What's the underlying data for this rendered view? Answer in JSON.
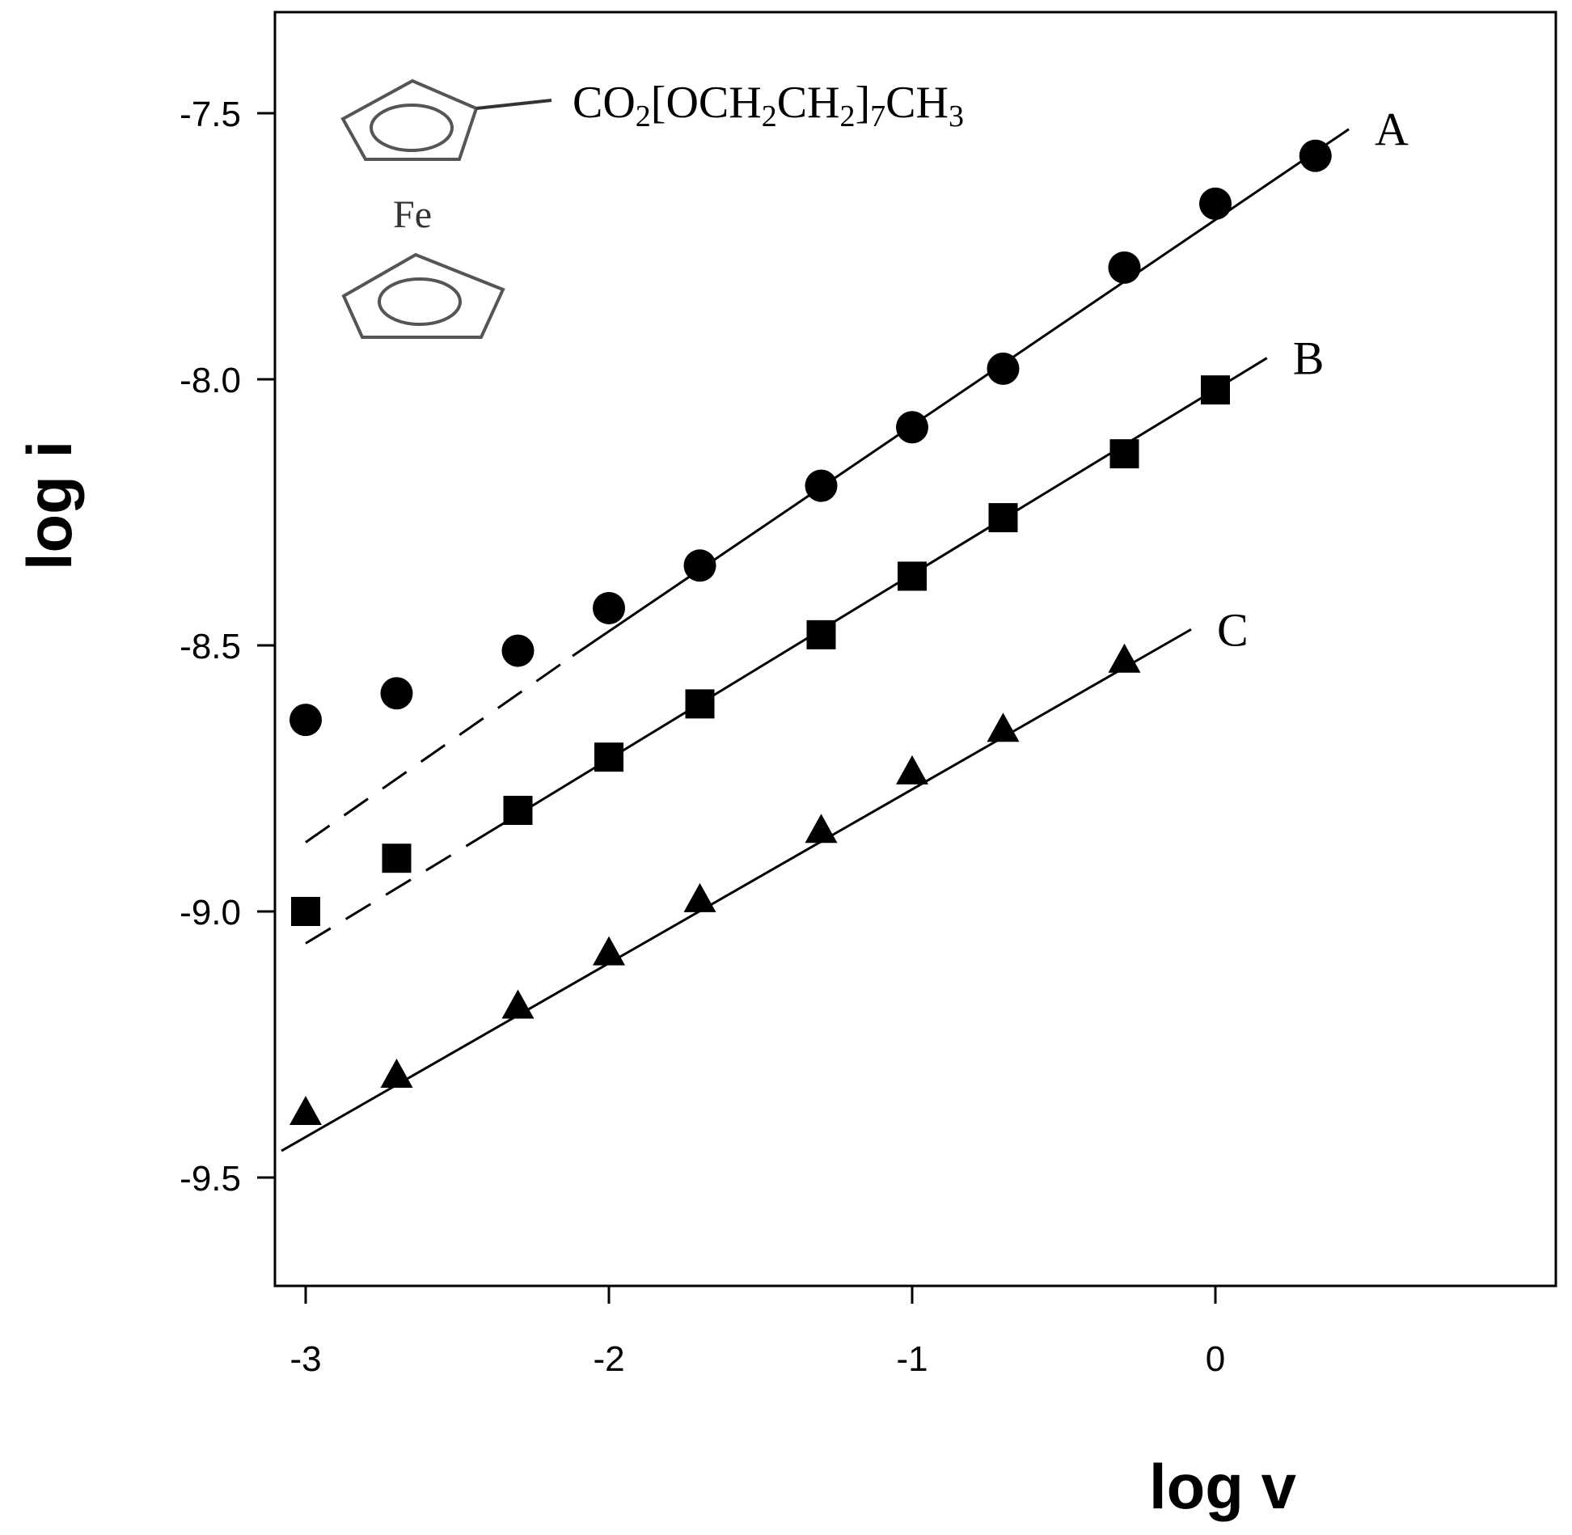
{
  "chart_data": {
    "type": "scatter",
    "xlabel": "log v",
    "ylabel": "log i",
    "xlim": [
      -3.5,
      0.7
    ],
    "ylim": [
      -9.7,
      -7.3
    ],
    "x_ticks": [
      -3,
      -2,
      -1,
      0
    ],
    "x_tick_labels": [
      "-3",
      "-2",
      "-1",
      "0"
    ],
    "y_ticks": [
      -7.5,
      -8.0,
      -8.5,
      -9.0,
      -9.5
    ],
    "y_tick_labels": [
      "-7.5",
      "-8.0",
      "-8.5",
      "-9.0",
      "-9.5"
    ],
    "grid": false,
    "series": [
      {
        "name": "A",
        "marker": "circle",
        "x": [
          -3.0,
          -2.7,
          -2.3,
          -2.0,
          -1.7,
          -1.3,
          -1.0,
          -0.7,
          -0.3,
          0.0,
          0.33
        ],
        "y": [
          -8.64,
          -8.59,
          -8.51,
          -8.43,
          -8.35,
          -8.2,
          -8.09,
          -7.98,
          -7.79,
          -7.67,
          -7.58
        ],
        "fit_solid": [
          [
            -2.12,
            -8.52
          ],
          [
            0.44,
            -7.53
          ]
        ],
        "fit_dashed": [
          [
            -3.0,
            -8.87
          ],
          [
            -2.12,
            -8.52
          ]
        ]
      },
      {
        "name": "B",
        "marker": "square",
        "x": [
          -3.0,
          -2.7,
          -2.3,
          -2.0,
          -1.7,
          -1.3,
          -1.0,
          -0.7,
          -0.3,
          0.0
        ],
        "y": [
          -9.0,
          -8.9,
          -8.81,
          -8.71,
          -8.61,
          -8.48,
          -8.37,
          -8.26,
          -8.14,
          -8.02
        ],
        "fit_solid": [
          [
            -2.45,
            -8.87
          ],
          [
            0.17,
            -7.96
          ]
        ],
        "fit_dashed": [
          [
            -3.0,
            -9.06
          ],
          [
            -2.45,
            -8.87
          ]
        ]
      },
      {
        "name": "C",
        "marker": "triangle",
        "x": [
          -3.0,
          -2.7,
          -2.3,
          -2.0,
          -1.7,
          -1.3,
          -1.0,
          -0.7,
          -0.3
        ],
        "y": [
          -9.38,
          -9.31,
          -9.18,
          -9.08,
          -8.98,
          -8.85,
          -8.74,
          -8.66,
          -8.53
        ],
        "fit_solid": [
          [
            -3.08,
            -9.45
          ],
          [
            -0.08,
            -8.47
          ]
        ]
      }
    ],
    "annotation": {
      "formula_parts": [
        {
          "t": "CO",
          "sub": false
        },
        {
          "t": "2",
          "sub": true
        },
        {
          "t": "[OCH",
          "sub": false
        },
        {
          "t": "2",
          "sub": true
        },
        {
          "t": "CH",
          "sub": false
        },
        {
          "t": "2",
          "sub": true
        },
        {
          "t": "]",
          "sub": false
        },
        {
          "t": "7",
          "sub": true
        },
        {
          "t": "CH",
          "sub": false
        },
        {
          "t": "3",
          "sub": true
        }
      ],
      "metal": "Fe"
    }
  }
}
